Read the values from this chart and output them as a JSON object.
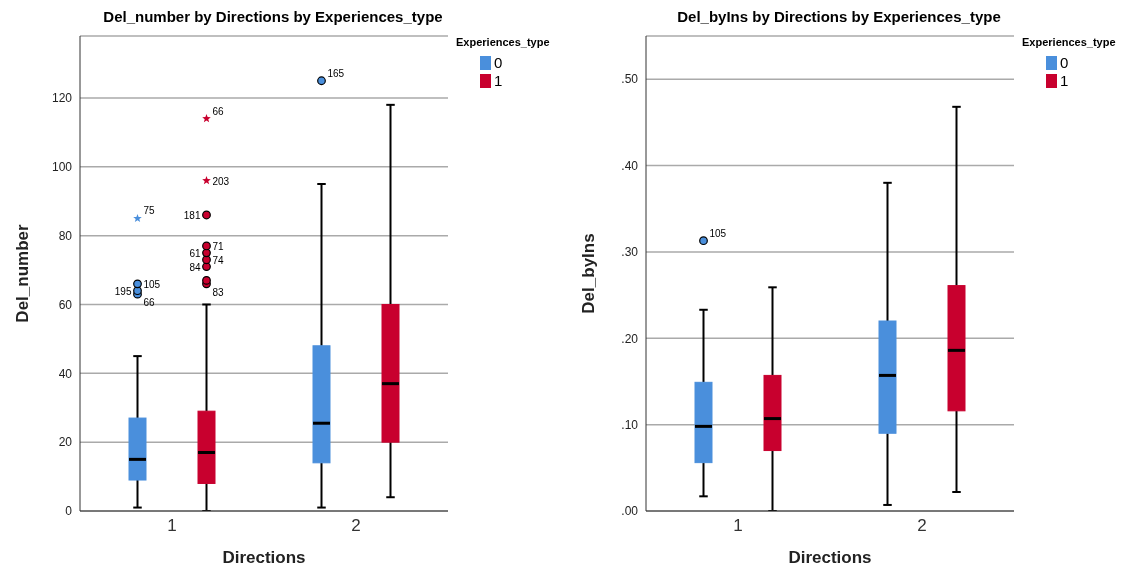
{
  "chart_data": [
    {
      "type": "box",
      "title": "Del_number by Directions by Experiences_type",
      "xlabel": "Directions",
      "ylabel": "Del_number",
      "legend_title": "Experiences_type",
      "legend": "top right",
      "grid": "y",
      "categories": [
        "1",
        "2"
      ],
      "ylim": [
        0,
        138
      ],
      "yticks": [
        0,
        20,
        40,
        60,
        80,
        100,
        120
      ],
      "series": [
        {
          "name": "0",
          "color": "#4a8fdc",
          "boxes": [
            {
              "low": 1,
              "q1": 9,
              "median": 15,
              "q3": 27,
              "high": 45,
              "outliers": [
                63,
                64,
                66,
                85
              ]
            },
            {
              "low": 1,
              "q1": 14,
              "median": 25.5,
              "q3": 48,
              "high": 95,
              "outliers": [
                125
              ]
            }
          ]
        },
        {
          "name": "1",
          "color": "#c8002e",
          "boxes": [
            {
              "low": 0,
              "q1": 8,
              "median": 17,
              "q3": 29,
              "high": 60,
              "outliers": [
                66,
                71,
                73,
                75,
                77,
                86,
                96,
                114,
                67
              ]
            },
            {
              "low": 4,
              "q1": 20,
              "median": 37,
              "q3": 60,
              "high": 118
            }
          ]
        }
      ],
      "annotations": [
        "66",
        "195",
        "105",
        "75",
        "165",
        "83",
        "84",
        "74",
        "61",
        "71",
        "181",
        "203",
        "66"
      ]
    },
    {
      "type": "box",
      "title": "Del_byIns by Directions by Experiences_type",
      "xlabel": "Directions",
      "ylabel": "Del_byIns",
      "legend_title": "Experiences_type",
      "legend": "top right",
      "grid": "y",
      "categories": [
        "1",
        "2"
      ],
      "ylim": [
        0,
        0.55
      ],
      "yticks": [
        {
          "value": 0,
          "label": ".00"
        },
        {
          "value": 0.1,
          "label": ".10"
        },
        {
          "value": 0.2,
          "label": ".20"
        },
        {
          "value": 0.3,
          "label": ".30"
        },
        {
          "value": 0.4,
          "label": ".40"
        },
        {
          "value": 0.5,
          "label": ".50"
        }
      ],
      "series": [
        {
          "name": "0",
          "color": "#4a8fdc",
          "boxes": [
            {
              "low": 0.017,
              "q1": 0.056,
              "median": 0.098,
              "q3": 0.149,
              "high": 0.233,
              "outliers": [
                0.313
              ]
            },
            {
              "low": 0.007,
              "q1": 0.09,
              "median": 0.157,
              "q3": 0.22,
              "high": 0.38
            }
          ]
        },
        {
          "name": "1",
          "color": "#c8002e",
          "boxes": [
            {
              "low": 0,
              "q1": 0.07,
              "median": 0.107,
              "q3": 0.157,
              "high": 0.259
            },
            {
              "low": 0.022,
              "q1": 0.116,
              "median": 0.186,
              "q3": 0.261,
              "high": 0.468
            }
          ]
        }
      ],
      "annotations": [
        "105"
      ]
    }
  ]
}
